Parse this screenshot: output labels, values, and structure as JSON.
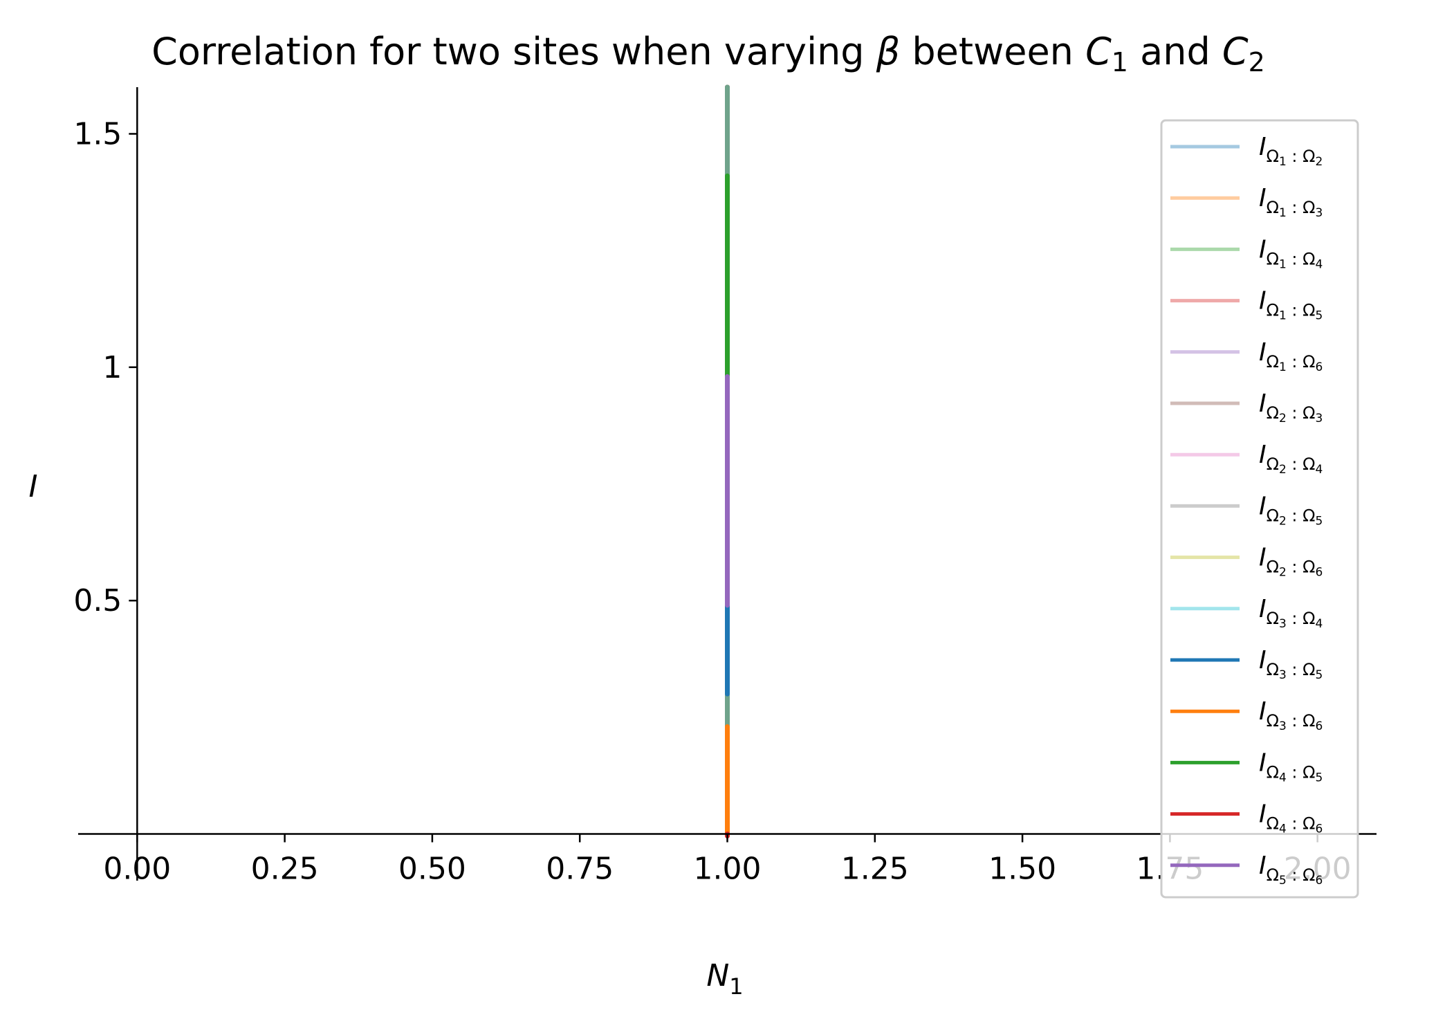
{
  "chart_data": {
    "type": "line",
    "title_parts": {
      "t1": "Correlation for two sites when varying ",
      "beta": "β",
      "t2": " between ",
      "c": "C",
      "sub1": "1",
      "and": " and ",
      "sub2": "2"
    },
    "xlabel": {
      "base": "N",
      "sub": "1"
    },
    "ylabel": "I",
    "xlim": [
      -0.1,
      2.1
    ],
    "ylim": [
      -0.1,
      1.6
    ],
    "x_ticks": [
      {
        "value": 0,
        "label": "0.00"
      },
      {
        "value": 0.25,
        "label": "0.25"
      },
      {
        "value": 0.5,
        "label": "0.50"
      },
      {
        "value": 0.75,
        "label": "0.75"
      },
      {
        "value": 1.0,
        "label": "1.00"
      },
      {
        "value": 1.25,
        "label": "1.25"
      },
      {
        "value": 1.5,
        "label": "1.50"
      },
      {
        "value": 1.75,
        "label": "1.75"
      },
      {
        "value": 2.0,
        "label": "2.00"
      }
    ],
    "y_ticks": [
      {
        "value": 0.5,
        "label": "0.5"
      },
      {
        "value": 1.0,
        "label": "1"
      },
      {
        "value": 1.5,
        "label": "1.5"
      }
    ],
    "grid": false,
    "legend_position": "right",
    "series": [
      {
        "name": {
          "a": "1",
          "b": "2"
        },
        "color": "#1f77b4",
        "alpha": 0.4,
        "x": [
          1.0,
          1.0
        ],
        "y": [
          0.0,
          1.6
        ]
      },
      {
        "name": {
          "a": "1",
          "b": "3"
        },
        "color": "#ff7f0e",
        "alpha": 0.4,
        "x": [
          1.0,
          1.0
        ],
        "y": [
          0.0,
          1.6
        ]
      },
      {
        "name": {
          "a": "1",
          "b": "4"
        },
        "color": "#2ca02c",
        "alpha": 0.4,
        "x": [
          1.0,
          1.0
        ],
        "y": [
          0.0,
          1.6
        ]
      },
      {
        "name": {
          "a": "1",
          "b": "5"
        },
        "color": "#d62728",
        "alpha": 0.4,
        "x": [
          1.0,
          1.0
        ],
        "y": [
          0.0,
          1.6
        ]
      },
      {
        "name": {
          "a": "1",
          "b": "6"
        },
        "color": "#9467bd",
        "alpha": 0.4,
        "x": [
          1.0,
          1.0
        ],
        "y": [
          0.0,
          1.6
        ]
      },
      {
        "name": {
          "a": "2",
          "b": "3"
        },
        "color": "#8c564b",
        "alpha": 0.4,
        "x": [
          1.0,
          1.0
        ],
        "y": [
          0.0,
          1.6
        ]
      },
      {
        "name": {
          "a": "2",
          "b": "4"
        },
        "color": "#e377c2",
        "alpha": 0.4,
        "x": [
          1.0,
          1.0
        ],
        "y": [
          0.0,
          1.6
        ]
      },
      {
        "name": {
          "a": "2",
          "b": "5"
        },
        "color": "#7f7f7f",
        "alpha": 0.4,
        "x": [
          1.0,
          1.0
        ],
        "y": [
          0.0,
          1.6
        ]
      },
      {
        "name": {
          "a": "2",
          "b": "6"
        },
        "color": "#bcbd22",
        "alpha": 0.4,
        "x": [
          1.0,
          1.0
        ],
        "y": [
          0.0,
          1.6
        ]
      },
      {
        "name": {
          "a": "3",
          "b": "4"
        },
        "color": "#17becf",
        "alpha": 0.4,
        "x": [
          1.0,
          1.0
        ],
        "y": [
          0.0,
          1.6
        ]
      },
      {
        "name": {
          "a": "3",
          "b": "5"
        },
        "color": "#1f77b4",
        "alpha": 1.0,
        "x": [
          1.0,
          1.0
        ],
        "y": [
          0.3,
          0.5
        ]
      },
      {
        "name": {
          "a": "3",
          "b": "6"
        },
        "color": "#ff7f0e",
        "alpha": 1.0,
        "x": [
          1.0,
          1.0
        ],
        "y": [
          0.0,
          0.23
        ]
      },
      {
        "name": {
          "a": "4",
          "b": "5"
        },
        "color": "#2ca02c",
        "alpha": 1.0,
        "x": [
          1.0,
          1.0
        ],
        "y": [
          0.98,
          1.41
        ]
      },
      {
        "name": {
          "a": "4",
          "b": "6"
        },
        "color": "#d62728",
        "alpha": 1.0,
        "x": [
          1.0,
          1.0
        ],
        "y": [
          0.0,
          0.0
        ]
      },
      {
        "name": {
          "a": "5",
          "b": "6"
        },
        "color": "#9467bd",
        "alpha": 1.0,
        "x": [
          1.0,
          1.0
        ],
        "y": [
          0.49,
          0.98
        ]
      }
    ]
  }
}
